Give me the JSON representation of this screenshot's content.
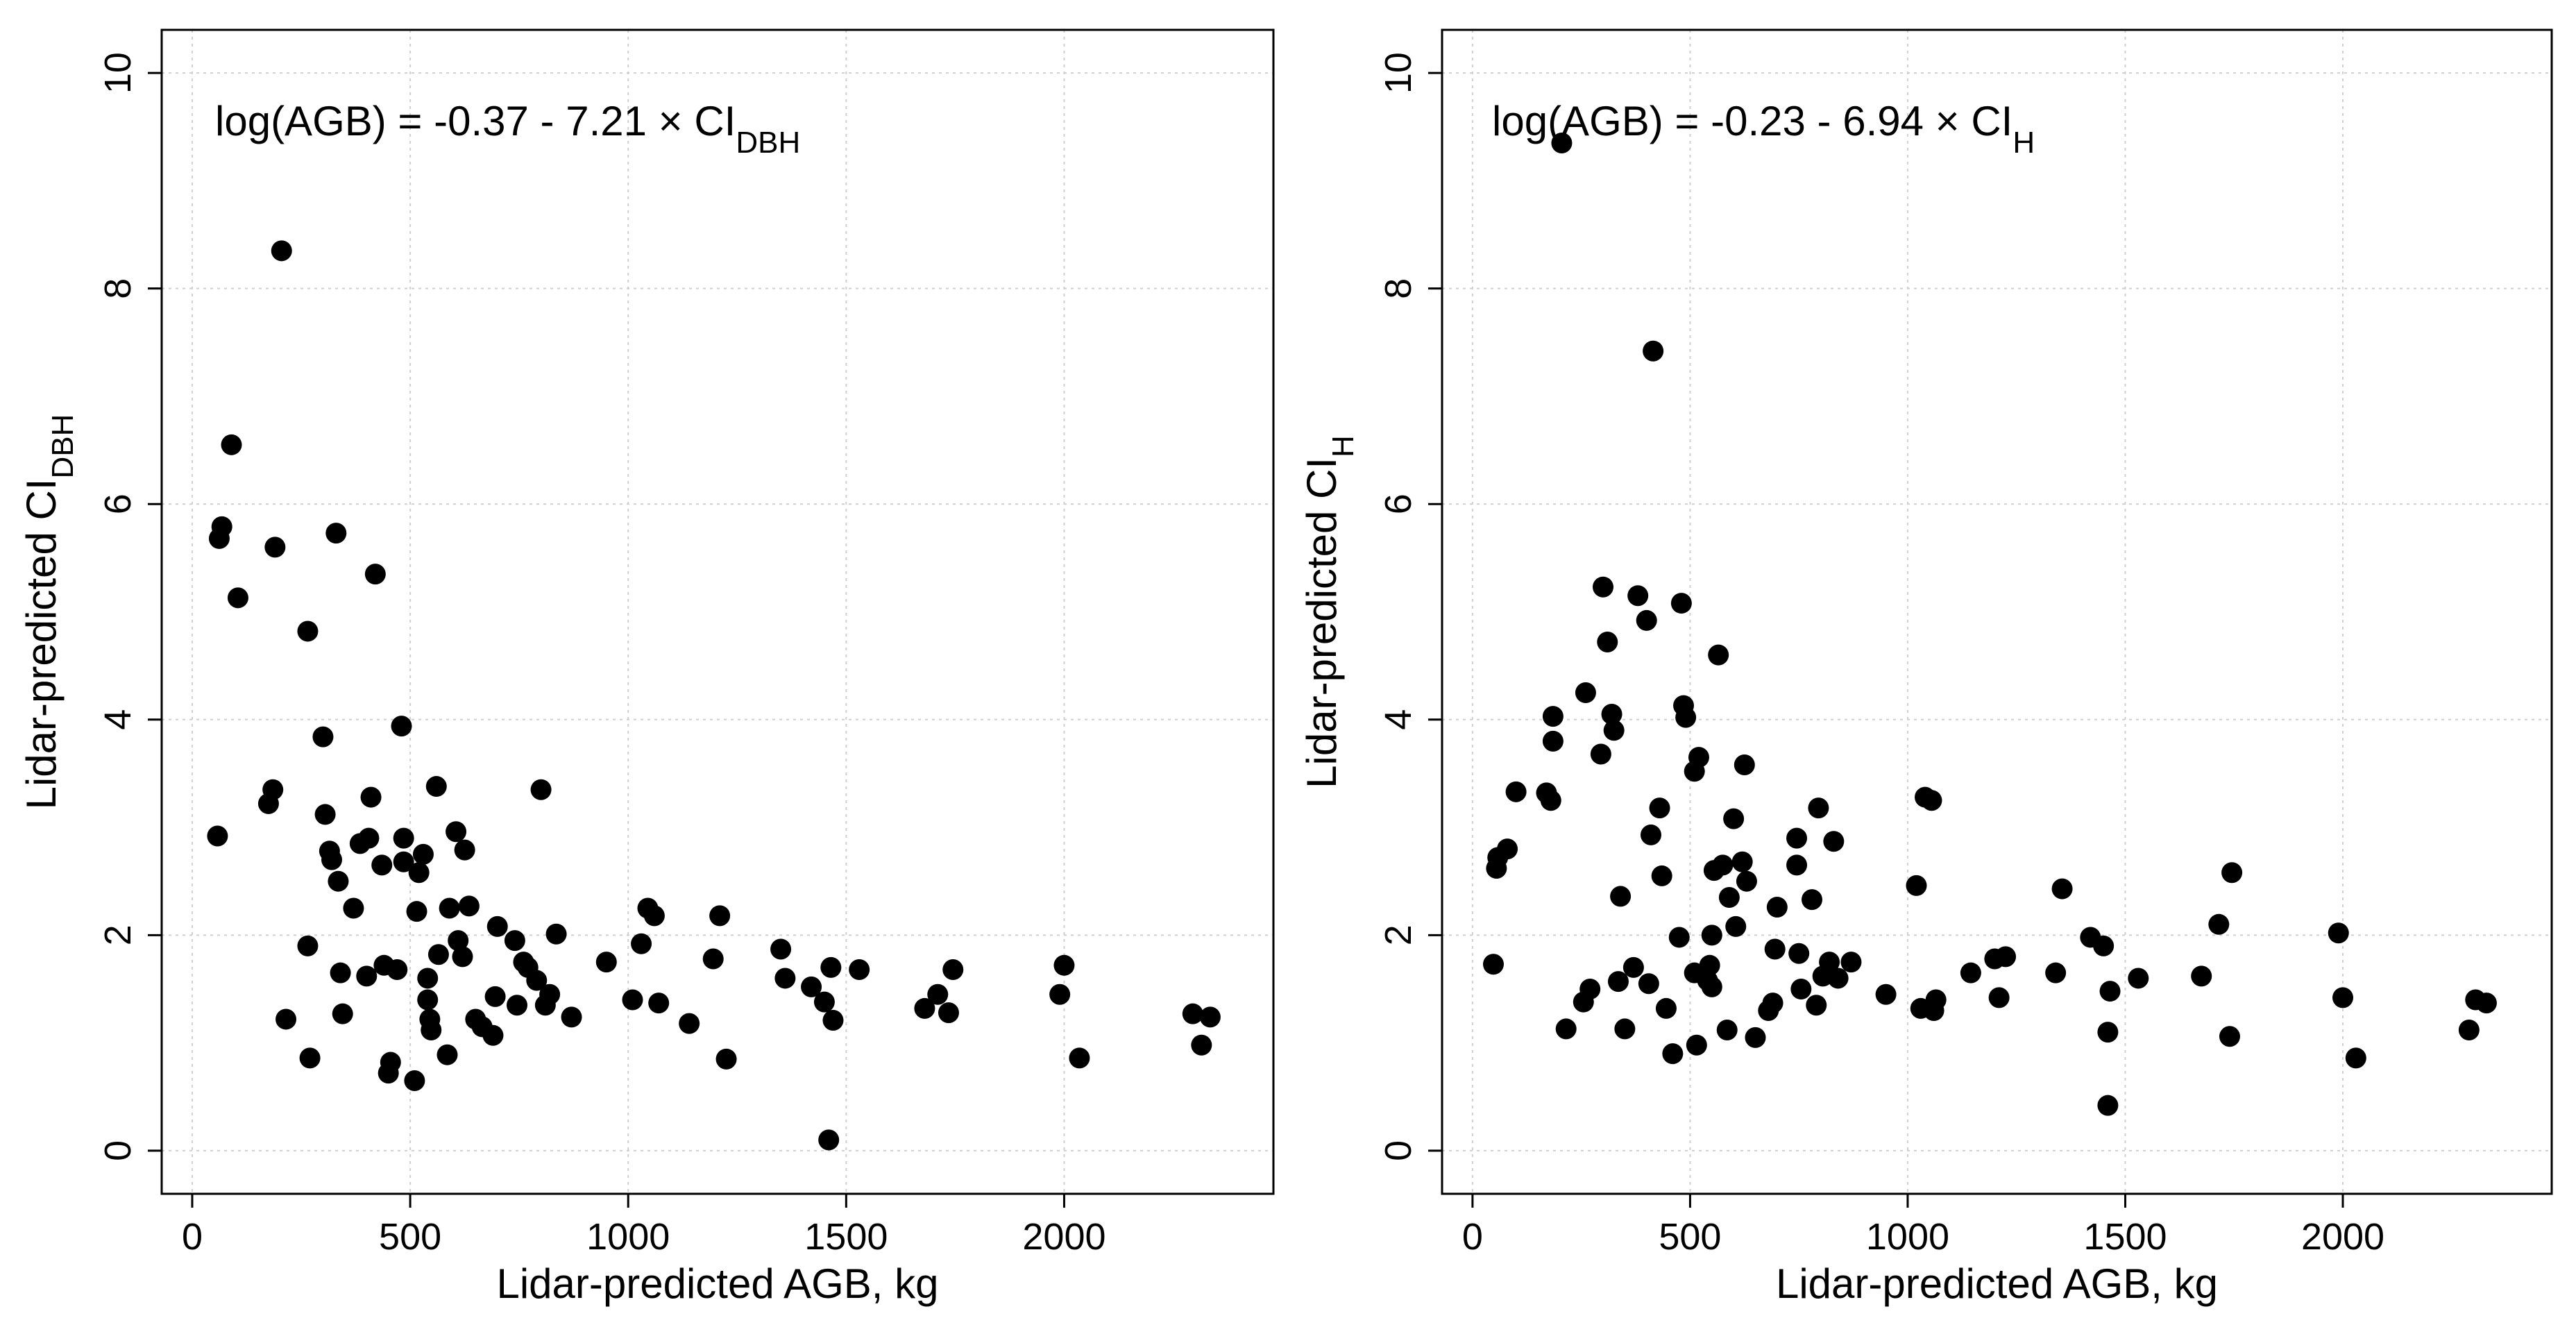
{
  "chart_data": [
    {
      "type": "scatter",
      "panel": "left",
      "title": "",
      "annotation": {
        "prefix": "log(AGB) = -0.37 - 7.21 × CI",
        "sub": "DBH"
      },
      "xlabel": "Lidar-predicted AGB, kg",
      "ylabel": {
        "prefix": "Lidar-predicted CI",
        "sub": "DBH"
      },
      "xlim": [
        -70,
        2480
      ],
      "ylim": [
        -0.4,
        10.4
      ],
      "xticks": [
        0,
        500,
        1000,
        1500,
        2000
      ],
      "yticks": [
        0,
        2,
        4,
        6,
        8,
        10
      ],
      "grid": true,
      "marker_color": "#000000",
      "points": [
        [
          58,
          2.92
        ],
        [
          62,
          5.68
        ],
        [
          68,
          5.79
        ],
        [
          90,
          6.55
        ],
        [
          105,
          5.13
        ],
        [
          175,
          3.22
        ],
        [
          185,
          3.35
        ],
        [
          190,
          5.6
        ],
        [
          205,
          8.35
        ],
        [
          215,
          1.22
        ],
        [
          265,
          1.9
        ],
        [
          265,
          4.82
        ],
        [
          270,
          0.86
        ],
        [
          300,
          3.84
        ],
        [
          305,
          3.12
        ],
        [
          315,
          2.78
        ],
        [
          320,
          2.7
        ],
        [
          330,
          5.73
        ],
        [
          335,
          2.5
        ],
        [
          340,
          1.65
        ],
        [
          345,
          1.27
        ],
        [
          370,
          2.25
        ],
        [
          385,
          2.85
        ],
        [
          400,
          1.62
        ],
        [
          405,
          2.9
        ],
        [
          410,
          3.28
        ],
        [
          420,
          5.35
        ],
        [
          435,
          2.65
        ],
        [
          440,
          1.72
        ],
        [
          450,
          0.72
        ],
        [
          455,
          0.82
        ],
        [
          470,
          1.68
        ],
        [
          480,
          3.94
        ],
        [
          485,
          2.9
        ],
        [
          485,
          2.68
        ],
        [
          510,
          0.65
        ],
        [
          515,
          2.22
        ],
        [
          520,
          2.58
        ],
        [
          530,
          2.75
        ],
        [
          540,
          1.6
        ],
        [
          540,
          1.4
        ],
        [
          545,
          1.22
        ],
        [
          548,
          1.12
        ],
        [
          560,
          3.38
        ],
        [
          565,
          1.82
        ],
        [
          585,
          0.89
        ],
        [
          590,
          2.25
        ],
        [
          605,
          2.96
        ],
        [
          610,
          1.95
        ],
        [
          620,
          1.8
        ],
        [
          625,
          2.79
        ],
        [
          635,
          2.27
        ],
        [
          650,
          1.22
        ],
        [
          665,
          1.15
        ],
        [
          690,
          1.07
        ],
        [
          695,
          1.43
        ],
        [
          700,
          2.08
        ],
        [
          740,
          1.95
        ],
        [
          745,
          1.35
        ],
        [
          760,
          1.75
        ],
        [
          770,
          1.7
        ],
        [
          790,
          1.58
        ],
        [
          800,
          3.35
        ],
        [
          810,
          1.35
        ],
        [
          820,
          1.45
        ],
        [
          835,
          2.01
        ],
        [
          870,
          1.24
        ],
        [
          950,
          1.75
        ],
        [
          1010,
          1.4
        ],
        [
          1030,
          1.92
        ],
        [
          1045,
          2.25
        ],
        [
          1060,
          2.18
        ],
        [
          1070,
          1.37
        ],
        [
          1140,
          1.18
        ],
        [
          1195,
          1.78
        ],
        [
          1210,
          2.18
        ],
        [
          1225,
          0.85
        ],
        [
          1350,
          1.87
        ],
        [
          1360,
          1.6
        ],
        [
          1420,
          1.52
        ],
        [
          1450,
          1.38
        ],
        [
          1460,
          0.1
        ],
        [
          1465,
          1.7
        ],
        [
          1470,
          1.21
        ],
        [
          1530,
          1.68
        ],
        [
          1680,
          1.32
        ],
        [
          1710,
          1.45
        ],
        [
          1735,
          1.28
        ],
        [
          1745,
          1.68
        ],
        [
          1990,
          1.45
        ],
        [
          2000,
          1.72
        ],
        [
          2035,
          0.86
        ],
        [
          2295,
          1.27
        ],
        [
          2315,
          0.98
        ],
        [
          2335,
          1.24
        ]
      ]
    },
    {
      "type": "scatter",
      "panel": "right",
      "title": "",
      "annotation": {
        "prefix": "log(AGB) = -0.23 - 6.94 × CI",
        "sub": "H"
      },
      "xlabel": "Lidar-predicted AGB, kg",
      "ylabel": {
        "prefix": "Lidar-predicted CI",
        "sub": "H"
      },
      "xlim": [
        -70,
        2480
      ],
      "ylim": [
        -0.4,
        10.4
      ],
      "xticks": [
        0,
        500,
        1000,
        1500,
        2000
      ],
      "yticks": [
        0,
        2,
        4,
        6,
        8,
        10
      ],
      "grid": true,
      "marker_color": "#000000",
      "points": [
        [
          48,
          1.73
        ],
        [
          55,
          2.62
        ],
        [
          58,
          2.72
        ],
        [
          80,
          2.8
        ],
        [
          100,
          3.33
        ],
        [
          170,
          3.32
        ],
        [
          180,
          3.25
        ],
        [
          185,
          3.8
        ],
        [
          185,
          4.03
        ],
        [
          205,
          9.35
        ],
        [
          215,
          1.13
        ],
        [
          255,
          1.38
        ],
        [
          260,
          4.25
        ],
        [
          270,
          1.5
        ],
        [
          295,
          3.68
        ],
        [
          300,
          5.23
        ],
        [
          310,
          4.72
        ],
        [
          320,
          4.05
        ],
        [
          325,
          3.9
        ],
        [
          335,
          1.57
        ],
        [
          340,
          2.36
        ],
        [
          350,
          1.13
        ],
        [
          370,
          1.7
        ],
        [
          380,
          5.15
        ],
        [
          400,
          4.92
        ],
        [
          405,
          1.55
        ],
        [
          410,
          2.93
        ],
        [
          415,
          7.42
        ],
        [
          430,
          3.18
        ],
        [
          435,
          2.55
        ],
        [
          445,
          1.32
        ],
        [
          460,
          0.9
        ],
        [
          475,
          1.98
        ],
        [
          480,
          5.08
        ],
        [
          485,
          4.13
        ],
        [
          490,
          4.02
        ],
        [
          510,
          1.65
        ],
        [
          510,
          3.52
        ],
        [
          515,
          0.98
        ],
        [
          520,
          3.65
        ],
        [
          540,
          1.58
        ],
        [
          545,
          1.72
        ],
        [
          550,
          1.52
        ],
        [
          550,
          2.0
        ],
        [
          555,
          2.6
        ],
        [
          565,
          4.6
        ],
        [
          575,
          2.65
        ],
        [
          585,
          1.12
        ],
        [
          590,
          2.35
        ],
        [
          600,
          3.08
        ],
        [
          605,
          2.08
        ],
        [
          620,
          2.68
        ],
        [
          625,
          3.58
        ],
        [
          630,
          2.5
        ],
        [
          650,
          1.05
        ],
        [
          680,
          1.3
        ],
        [
          690,
          1.37
        ],
        [
          695,
          1.87
        ],
        [
          700,
          2.26
        ],
        [
          745,
          2.9
        ],
        [
          745,
          2.65
        ],
        [
          750,
          1.83
        ],
        [
          755,
          1.5
        ],
        [
          780,
          2.33
        ],
        [
          790,
          1.35
        ],
        [
          795,
          3.18
        ],
        [
          805,
          1.62
        ],
        [
          820,
          1.75
        ],
        [
          830,
          2.87
        ],
        [
          840,
          1.6
        ],
        [
          870,
          1.75
        ],
        [
          950,
          1.45
        ],
        [
          1020,
          2.46
        ],
        [
          1030,
          1.32
        ],
        [
          1040,
          3.28
        ],
        [
          1055,
          3.25
        ],
        [
          1060,
          1.3
        ],
        [
          1065,
          1.4
        ],
        [
          1145,
          1.65
        ],
        [
          1200,
          1.78
        ],
        [
          1210,
          1.42
        ],
        [
          1225,
          1.8
        ],
        [
          1340,
          1.65
        ],
        [
          1355,
          2.43
        ],
        [
          1420,
          1.98
        ],
        [
          1450,
          1.9
        ],
        [
          1460,
          1.1
        ],
        [
          1460,
          0.42
        ],
        [
          1465,
          1.48
        ],
        [
          1530,
          1.6
        ],
        [
          1675,
          1.62
        ],
        [
          1715,
          2.1
        ],
        [
          1740,
          1.06
        ],
        [
          1745,
          2.58
        ],
        [
          1990,
          2.02
        ],
        [
          2000,
          1.42
        ],
        [
          2030,
          0.86
        ],
        [
          2290,
          1.12
        ],
        [
          2305,
          1.4
        ],
        [
          2330,
          1.37
        ]
      ]
    }
  ]
}
